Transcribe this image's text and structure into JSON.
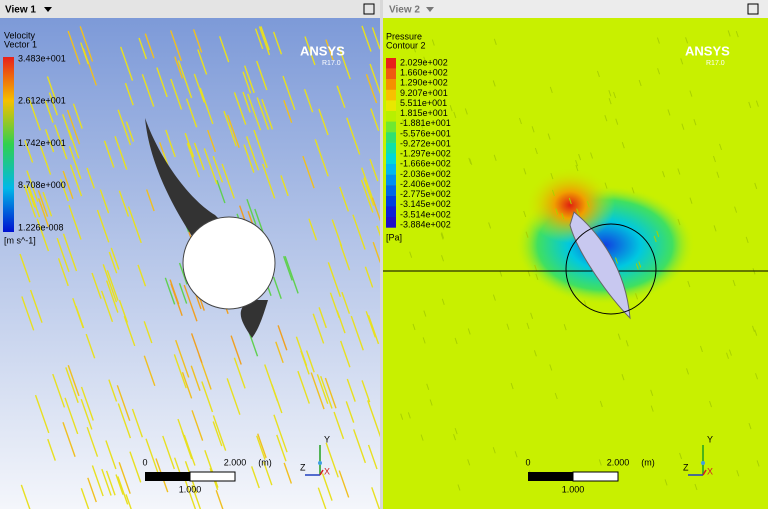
{
  "view1": {
    "tab": "View 1",
    "legend": {
      "title": "Velocity",
      "subtitle": "Vector 1",
      "labels": [
        "3.483e+001",
        "2.612e+001",
        "1.742e+001",
        "8.708e+000",
        "1.226e-008"
      ],
      "unit": "[m s^-1]"
    },
    "logo": "ANSYS",
    "version": "R17.0",
    "scale": {
      "zero": "0",
      "max": "2.000",
      "unit": "(m)",
      "mid": "1.000"
    },
    "axes": {
      "y": "Y",
      "z": "Z",
      "x": "X"
    }
  },
  "view2": {
    "tab": "View 2",
    "legend": {
      "title": "Pressure",
      "subtitle": "Contour 2",
      "labels": [
        "2.029e+002",
        "1.660e+002",
        "1.290e+002",
        "9.207e+001",
        "5.511e+001",
        "1.815e+001",
        "-1.881e+001",
        "-5.576e+001",
        "-9.272e+001",
        "-1.297e+002",
        "-1.666e+002",
        "-2.036e+002",
        "-2.406e+002",
        "-2.775e+002",
        "-3.145e+002",
        "-3.514e+002",
        "-3.884e+002"
      ],
      "unit": "[Pa]"
    },
    "logo": "ANSYS",
    "version": "R17.0",
    "scale": {
      "zero": "0",
      "max": "2.000",
      "unit": "(m)",
      "mid": "1.000"
    },
    "axes": {
      "y": "Y",
      "z": "Z",
      "x": "X"
    }
  }
}
